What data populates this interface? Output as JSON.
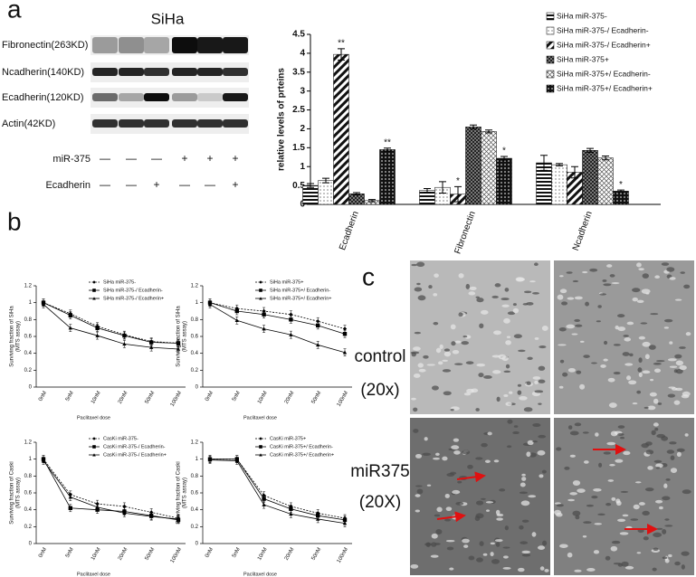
{
  "panel_labels": [
    "a",
    "b",
    "c"
  ],
  "blot": {
    "title": "SiHa",
    "bands": [
      "Fibronectin(263KD)",
      "Ncadherin(140KD)",
      "Ecadherin(120KD)",
      "Actin(42KD)"
    ],
    "rows": [
      {
        "label": "miR-375",
        "signs": [
          "—",
          "—",
          "—",
          "+",
          "+",
          "+"
        ]
      },
      {
        "label": "Ecadherin",
        "signs": [
          "—",
          "—",
          "+",
          "—",
          "—",
          "+"
        ]
      }
    ]
  },
  "micrographs": {
    "labels": [
      "control",
      "(20x)",
      "miR375",
      "(20X)"
    ]
  },
  "chart_data": [
    {
      "type": "bar",
      "ylabel": "relative levels of prteins",
      "categories": [
        "Ecadherin",
        "Fibronectin",
        "Ncadherin"
      ],
      "ylim": [
        0,
        4.5
      ],
      "yticks": [
        0,
        0.5,
        1,
        1.5,
        2,
        2.5,
        3,
        3.5,
        4,
        4.5
      ],
      "legend": "upper right",
      "series": [
        {
          "name": "SiHa miR-375-",
          "pattern": "hlines",
          "values": [
            0.5,
            0.37,
            1.1
          ],
          "errors": [
            0.05,
            0.05,
            0.2
          ],
          "significance": [
            null,
            null,
            null
          ]
        },
        {
          "name": "SiHa miR-375-/ Ecadherin-",
          "pattern": "dots",
          "values": [
            0.63,
            0.45,
            1.05
          ],
          "errors": [
            0.06,
            0.15,
            0.03
          ],
          "significance": [
            null,
            null,
            null
          ]
        },
        {
          "name": "SiHa miR-375-/ Ecadherin+",
          "pattern": "diagonal",
          "values": [
            3.97,
            0.27,
            0.85
          ],
          "errors": [
            0.15,
            0.2,
            0.15
          ],
          "significance": [
            "**",
            "*",
            null
          ]
        },
        {
          "name": "SiHa miR-375+",
          "pattern": "darkcheck",
          "values": [
            0.28,
            2.05,
            1.43
          ],
          "errors": [
            0.03,
            0.05,
            0.05
          ],
          "significance": [
            null,
            null,
            null
          ]
        },
        {
          "name": "SiHa miR-375+/ Ecadherin-",
          "pattern": "lightcross",
          "values": [
            0.1,
            1.93,
            1.23
          ],
          "errors": [
            0.03,
            0.04,
            0.05
          ],
          "significance": [
            null,
            null,
            null
          ]
        },
        {
          "name": "SiHa miR-375+/ Ecadherin+",
          "pattern": "darkdots",
          "values": [
            1.45,
            1.22,
            0.35
          ],
          "errors": [
            0.04,
            0.05,
            0.03
          ],
          "significance": [
            "**",
            "*",
            "*"
          ]
        }
      ]
    },
    {
      "type": "line",
      "ylabel": [
        "Surviving fraction of SiHa",
        "(MTS assay)"
      ],
      "xlabel": "Paclitaxel dose",
      "categories": [
        "0nM",
        "5nM",
        "10nM",
        "20nM",
        "50nM",
        "100nM"
      ],
      "ylim": [
        0,
        1.2
      ],
      "yticks": [
        0,
        0.2,
        0.4,
        0.6,
        0.8,
        1,
        1.2
      ],
      "legend": "upper right",
      "series": [
        {
          "name": "SiHa miR-375-",
          "marker": "diamond",
          "dash": true,
          "values": [
            1.0,
            0.87,
            0.72,
            0.62,
            0.54,
            0.52
          ]
        },
        {
          "name": "SiHa miR-375-/ Ecadherin-",
          "marker": "square",
          "dash": false,
          "values": [
            1.0,
            0.85,
            0.7,
            0.61,
            0.53,
            0.52
          ]
        },
        {
          "name": "SiHa miR-375-/ Ecadherin+",
          "marker": "triangle",
          "dash": false,
          "values": [
            0.98,
            0.7,
            0.61,
            0.51,
            0.47,
            0.45
          ]
        }
      ]
    },
    {
      "type": "line",
      "ylabel": [
        "Surviving fraction of SiHa",
        "(MTS assay)"
      ],
      "xlabel": "Paclitaxel dose",
      "categories": [
        "0nM",
        "5nM",
        "10nM",
        "20nM",
        "50nM",
        "100nM"
      ],
      "ylim": [
        0,
        1.2
      ],
      "yticks": [
        0,
        0.2,
        0.4,
        0.6,
        0.8,
        1,
        1.2
      ],
      "legend": "upper right",
      "series": [
        {
          "name": "SiHa miR-375+",
          "marker": "diamond",
          "dash": true,
          "values": [
            1.0,
            0.93,
            0.9,
            0.86,
            0.78,
            0.69
          ]
        },
        {
          "name": "SiHa miR-375+/ Ecadherin-",
          "marker": "square",
          "dash": false,
          "values": [
            1.0,
            0.9,
            0.86,
            0.8,
            0.73,
            0.63
          ]
        },
        {
          "name": "SiHa miR-375+/ Ecadherin+",
          "marker": "triangle",
          "dash": false,
          "values": [
            0.98,
            0.79,
            0.69,
            0.62,
            0.5,
            0.41
          ]
        }
      ]
    },
    {
      "type": "line",
      "ylabel": [
        "Surviving fraction of Caski",
        "(MTS assay)"
      ],
      "xlabel": "Paclitaxel dose",
      "categories": [
        "0nM",
        "5nM",
        "10nM",
        "20nM",
        "50nM",
        "100nM"
      ],
      "ylim": [
        0,
        1.2
      ],
      "yticks": [
        0,
        0.2,
        0.4,
        0.6,
        0.8,
        1,
        1.2
      ],
      "legend": "upper right",
      "series": [
        {
          "name": "CasKi miR-375-",
          "marker": "diamond",
          "dash": true,
          "values": [
            1.0,
            0.58,
            0.47,
            0.44,
            0.37,
            0.3
          ]
        },
        {
          "name": "CasKi miR-375-/ Ecadherin-",
          "marker": "square",
          "dash": false,
          "values": [
            1.0,
            0.42,
            0.4,
            0.38,
            0.33,
            0.28
          ]
        },
        {
          "name": "CasKi miR-375-/ Ecadherin+",
          "marker": "triangle",
          "dash": false,
          "values": [
            0.98,
            0.55,
            0.43,
            0.36,
            0.32,
            0.29
          ]
        }
      ]
    },
    {
      "type": "line",
      "ylabel": [
        "Surviving fraction of Caski",
        "(MTS assay)"
      ],
      "xlabel": "Paclitaxel dose",
      "categories": [
        "0nM",
        "5nM",
        "10nM",
        "20nM",
        "50nM",
        "100nM"
      ],
      "ylim": [
        0,
        1.2
      ],
      "yticks": [
        0,
        0.2,
        0.4,
        0.6,
        0.8,
        1,
        1.2
      ],
      "legend": "upper right",
      "series": [
        {
          "name": "CasKi miR-375+",
          "marker": "diamond",
          "dash": true,
          "values": [
            1.0,
            1.0,
            0.57,
            0.44,
            0.36,
            0.3
          ]
        },
        {
          "name": "CasKi miR-375+/ Ecadherin-",
          "marker": "square",
          "dash": false,
          "values": [
            1.0,
            1.0,
            0.53,
            0.41,
            0.33,
            0.28
          ]
        },
        {
          "name": "CasKi miR-375+/ Ecadherin+",
          "marker": "triangle",
          "dash": false,
          "values": [
            0.99,
            0.98,
            0.46,
            0.35,
            0.29,
            0.24
          ]
        }
      ]
    }
  ]
}
